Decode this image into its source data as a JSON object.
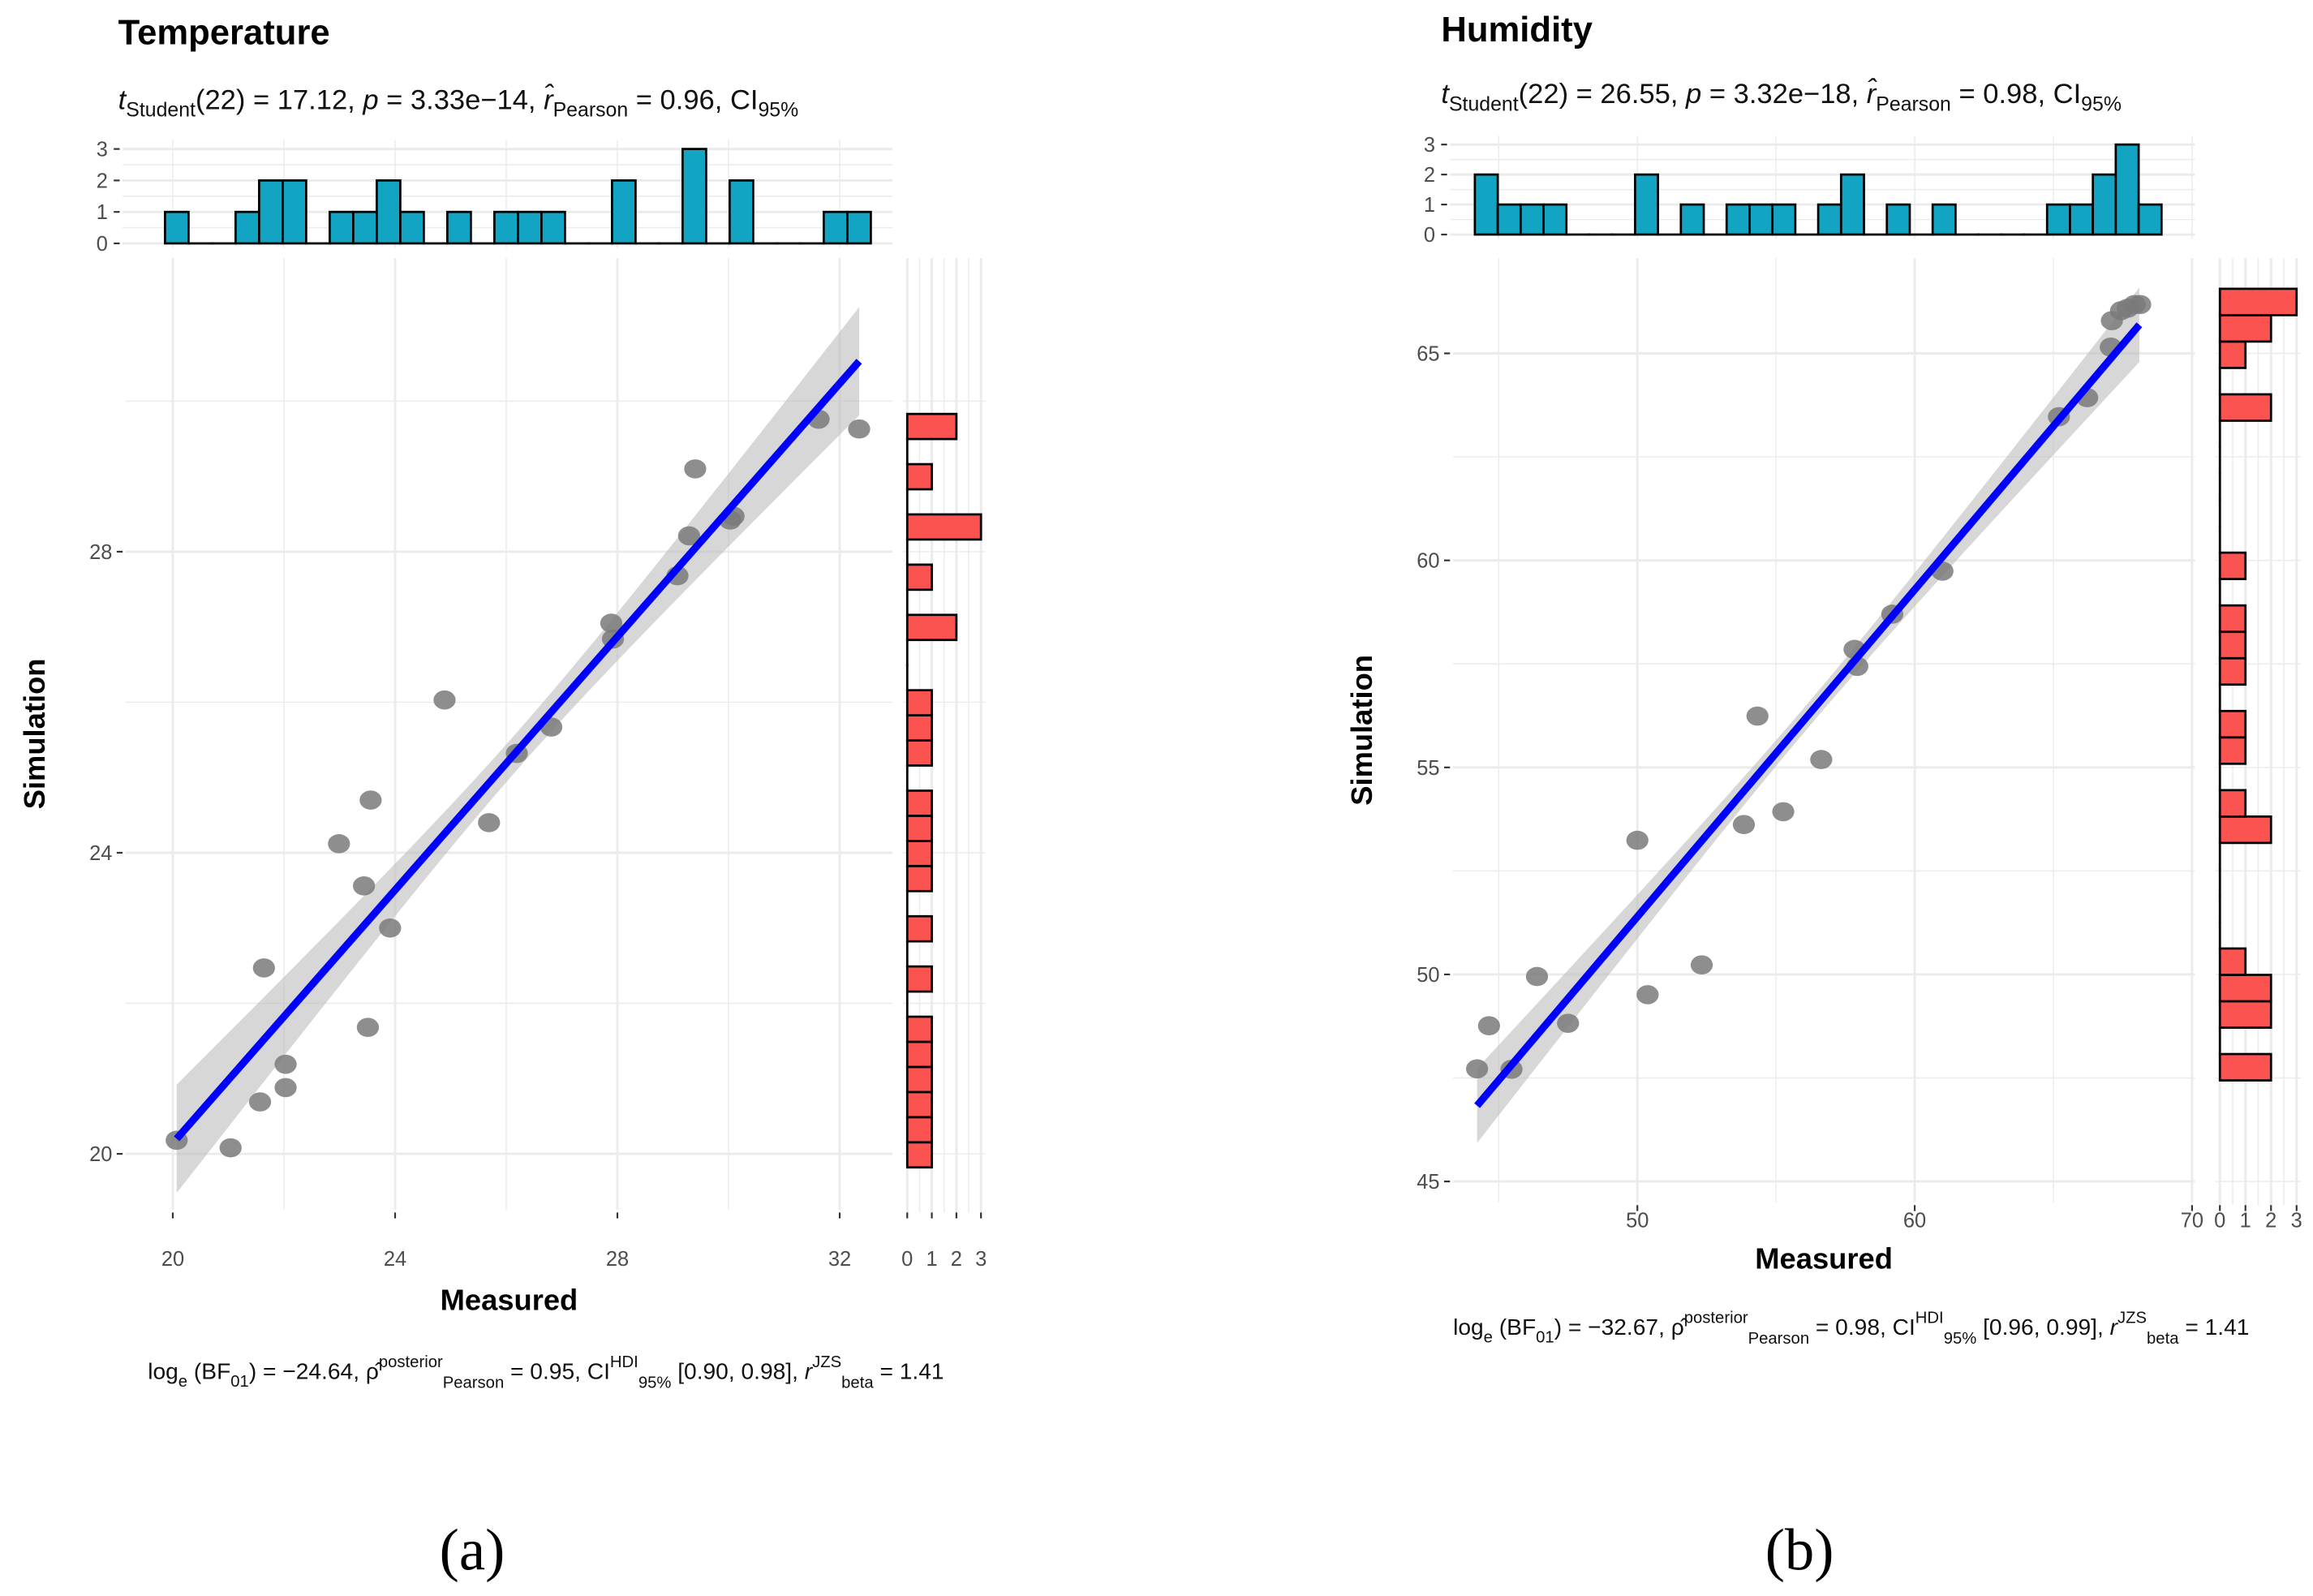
{
  "panel_labels": [
    "(a)",
    "(b)"
  ],
  "colors": {
    "top_hist_fill": "#12A4C2",
    "right_hist_fill": "#FA5350",
    "fit_line": "#0000FF",
    "ci_band": "#BDBDBD",
    "points": "#7A7A7A",
    "grid": "#EBEBEB"
  },
  "chart_data": [
    {
      "type": "scatter",
      "title": "Temperature",
      "xlabel": "Measured",
      "ylabel": "Simulation",
      "subtitle_segments": [
        {
          "t": "t",
          "s": "i"
        },
        {
          "t": "Student",
          "s": "sub"
        },
        {
          "t": "(22) = 17.12, ",
          "s": "n"
        },
        {
          "t": "p",
          "s": "i"
        },
        {
          "t": " = 3.33e−14, ",
          "s": "n"
        },
        {
          "t": "r̂",
          "s": "i"
        },
        {
          "t": "Pearson",
          "s": "sub"
        },
        {
          "t": " = 0.96, CI",
          "s": "n"
        },
        {
          "t": "95%",
          "s": "sub"
        }
      ],
      "caption_segments": [
        {
          "t": "log",
          "s": "n"
        },
        {
          "t": "e",
          "s": "sub"
        },
        {
          "t": " (BF",
          "s": "n"
        },
        {
          "t": "01",
          "s": "sub"
        },
        {
          "t": ") = −24.64, ",
          "s": "n"
        },
        {
          "t": "ρ̂",
          "s": "n"
        },
        {
          "t": "posterior",
          "s": "sup"
        },
        {
          "t": "Pearson",
          "s": "subst"
        },
        {
          "t": " = 0.95, CI",
          "s": "n"
        },
        {
          "t": "HDI",
          "s": "sup"
        },
        {
          "t": "95%",
          "s": "subst"
        },
        {
          "t": " [0.90, 0.98], ",
          "s": "n"
        },
        {
          "t": "r",
          "s": "i"
        },
        {
          "t": "JZS",
          "s": "sup"
        },
        {
          "t": "beta",
          "s": "subst"
        },
        {
          "t": " = 1.41",
          "s": "n"
        }
      ],
      "xlim": [
        19.15,
        32.95
      ],
      "ylim": [
        19.26,
        31.9
      ],
      "xticks": [
        20,
        24,
        28,
        32
      ],
      "xminor": [
        22,
        26,
        30
      ],
      "yticks": [
        20,
        24,
        28
      ],
      "yminor": [
        22,
        26,
        30
      ],
      "points": {
        "x": [
          20.07,
          21.04,
          21.57,
          22.03,
          22.03,
          21.64,
          23.51,
          23.44,
          23.91,
          22.99,
          23.56,
          24.89,
          25.69,
          26.19,
          26.81,
          27.92,
          27.89,
          29.08,
          29.29,
          29.4,
          30.03,
          30.09,
          31.62,
          32.35
        ],
        "y": [
          20.18,
          20.08,
          20.69,
          20.88,
          21.19,
          22.47,
          21.68,
          23.56,
          23.0,
          24.12,
          24.7,
          26.03,
          24.4,
          25.32,
          25.67,
          26.84,
          27.05,
          27.68,
          28.21,
          29.1,
          28.42,
          28.47,
          29.76,
          29.63
        ]
      },
      "fit": {
        "x": [
          20.07,
          32.35
        ],
        "y": [
          20.2,
          30.53
        ],
        "ci_halfwidth_ends": 0.72,
        "ci_halfwidth_center": 0.25
      },
      "top_hist": {
        "range": [
          19.86,
          32.56
        ],
        "counts": [
          1,
          0,
          0,
          1,
          2,
          2,
          0,
          1,
          1,
          2,
          1,
          0,
          1,
          0,
          1,
          1,
          1,
          0,
          0,
          2,
          0,
          0,
          3,
          0,
          2,
          0,
          0,
          0,
          1,
          1
        ],
        "ticks": [
          0,
          1,
          2,
          3
        ]
      },
      "right_hist": {
        "range": [
          19.82,
          29.83
        ],
        "counts": [
          1,
          1,
          1,
          1,
          1,
          1,
          0,
          1,
          0,
          1,
          0,
          1,
          1,
          1,
          1,
          0,
          1,
          1,
          1,
          0,
          0,
          2,
          0,
          1,
          0,
          3,
          0,
          1,
          0,
          2
        ],
        "ticks": [
          0,
          1,
          2,
          3
        ]
      }
    },
    {
      "type": "scatter",
      "title": "Humidity",
      "xlabel": "Measured",
      "ylabel": "Simulation",
      "subtitle_segments": [
        {
          "t": "t",
          "s": "i"
        },
        {
          "t": "Student",
          "s": "sub"
        },
        {
          "t": "(22) = 26.55, ",
          "s": "n"
        },
        {
          "t": "p",
          "s": "i"
        },
        {
          "t": " = 3.32e−18, ",
          "s": "n"
        },
        {
          "t": "r̂",
          "s": "i"
        },
        {
          "t": "Pearson",
          "s": "sub"
        },
        {
          "t": " = 0.98, CI",
          "s": "n"
        },
        {
          "t": "95%",
          "s": "sub"
        }
      ],
      "caption_segments": [
        {
          "t": "log",
          "s": "n"
        },
        {
          "t": "e",
          "s": "sub"
        },
        {
          "t": " (BF",
          "s": "n"
        },
        {
          "t": "01",
          "s": "sub"
        },
        {
          "t": ") = −32.67, ",
          "s": "n"
        },
        {
          "t": "ρ̂",
          "s": "n"
        },
        {
          "t": "posterior",
          "s": "sup"
        },
        {
          "t": "Pearson",
          "s": "subst"
        },
        {
          "t": " = 0.98, CI",
          "s": "n"
        },
        {
          "t": "HDI",
          "s": "sup"
        },
        {
          "t": "95%",
          "s": "subst"
        },
        {
          "t": " [0.96, 0.99], ",
          "s": "n"
        },
        {
          "t": "r",
          "s": "i"
        },
        {
          "t": "JZS",
          "s": "sup"
        },
        {
          "t": "beta",
          "s": "subst"
        },
        {
          "t": " = 1.41",
          "s": "n"
        }
      ],
      "xlim": [
        43.35,
        70.1
      ],
      "ylim": [
        44.5,
        67.3
      ],
      "xticks": [
        50,
        60,
        70
      ],
      "xminor": [
        45,
        55,
        65
      ],
      "yticks": [
        45,
        50,
        55,
        60,
        65
      ],
      "yminor": [
        47.5,
        52.5,
        57.5,
        62.5,
        67.5
      ],
      "points": {
        "x": [
          44.22,
          44.65,
          45.46,
          46.38,
          47.5,
          50.0,
          50.37,
          52.32,
          53.84,
          54.33,
          55.26,
          56.63,
          57.83,
          57.93,
          59.19,
          61.0,
          65.2,
          66.22,
          67.07,
          67.11,
          67.44,
          67.68,
          67.93,
          68.13
        ],
        "y": [
          47.72,
          48.76,
          47.71,
          49.95,
          48.82,
          53.24,
          49.51,
          50.23,
          53.62,
          56.24,
          53.93,
          55.19,
          57.85,
          57.44,
          58.7,
          59.74,
          63.47,
          63.93,
          65.15,
          65.79,
          66.03,
          66.09,
          66.18,
          66.18
        ]
      },
      "fit": {
        "x": [
          44.22,
          68.1
        ],
        "y": [
          46.83,
          65.69
        ],
        "ci_halfwidth_ends": 0.9,
        "ci_halfwidth_center": 0.3
      },
      "top_hist": {
        "range": [
          44.14,
          68.9
        ],
        "counts": [
          2,
          1,
          1,
          1,
          0,
          0,
          0,
          2,
          0,
          1,
          0,
          1,
          1,
          1,
          0,
          1,
          2,
          0,
          1,
          0,
          1,
          0,
          0,
          0,
          0,
          1,
          1,
          2,
          3,
          1
        ],
        "ticks": [
          0,
          1,
          2,
          3
        ]
      },
      "right_hist": {
        "range": [
          47.44,
          66.56
        ],
        "counts": [
          2,
          0,
          2,
          2,
          1,
          0,
          0,
          0,
          0,
          2,
          1,
          0,
          1,
          1,
          0,
          1,
          1,
          1,
          0,
          1,
          0,
          0,
          0,
          0,
          0,
          2,
          0,
          1,
          2,
          3
        ],
        "ticks": [
          0,
          1,
          2,
          3
        ]
      }
    }
  ]
}
